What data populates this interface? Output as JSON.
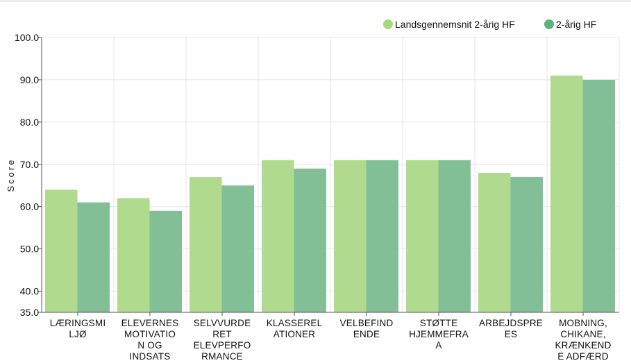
{
  "chart_data": {
    "type": "bar",
    "ylabel": "Score",
    "ylim": [
      35,
      100
    ],
    "yticks": [
      "100.0",
      "90.0",
      "80.0",
      "70.0",
      "60.0",
      "50.0",
      "40.0",
      "35.0"
    ],
    "ytick_values": [
      100,
      90,
      80,
      70,
      60,
      50,
      40,
      35
    ],
    "grid": true,
    "legend_position": "top-right",
    "categories": [
      [
        "LÆRINGSMI",
        "LJØ"
      ],
      [
        "ELEVERNES",
        "MOTIVATIO",
        "N OG",
        "INDSATS"
      ],
      [
        "SELVVURDE",
        "RET",
        "ELEVPERFO",
        "RMANCE"
      ],
      [
        "KLASSEREL",
        "ATIONER"
      ],
      [
        "VELBEFIND",
        "ENDE"
      ],
      [
        "STØTTE",
        "HJEMMEFRA",
        "A"
      ],
      [
        "ARBEJDSPRE",
        "ES"
      ],
      [
        "MOBNING,",
        "CHIKANE,",
        "KRÆNKEND",
        "E ADFÆRD"
      ]
    ],
    "series": [
      {
        "name": "Landsgennemsnit 2-årig HF",
        "color": "#b0da8e",
        "values": [
          64,
          62,
          67,
          71,
          71,
          71,
          68,
          91
        ]
      },
      {
        "name": "2-årig HF",
        "color": "#82bf96",
        "values": [
          61,
          59,
          65,
          69,
          71,
          71,
          67,
          90
        ]
      }
    ],
    "legend_colors": [
      "#a7d97c",
      "#5bb37d"
    ]
  }
}
